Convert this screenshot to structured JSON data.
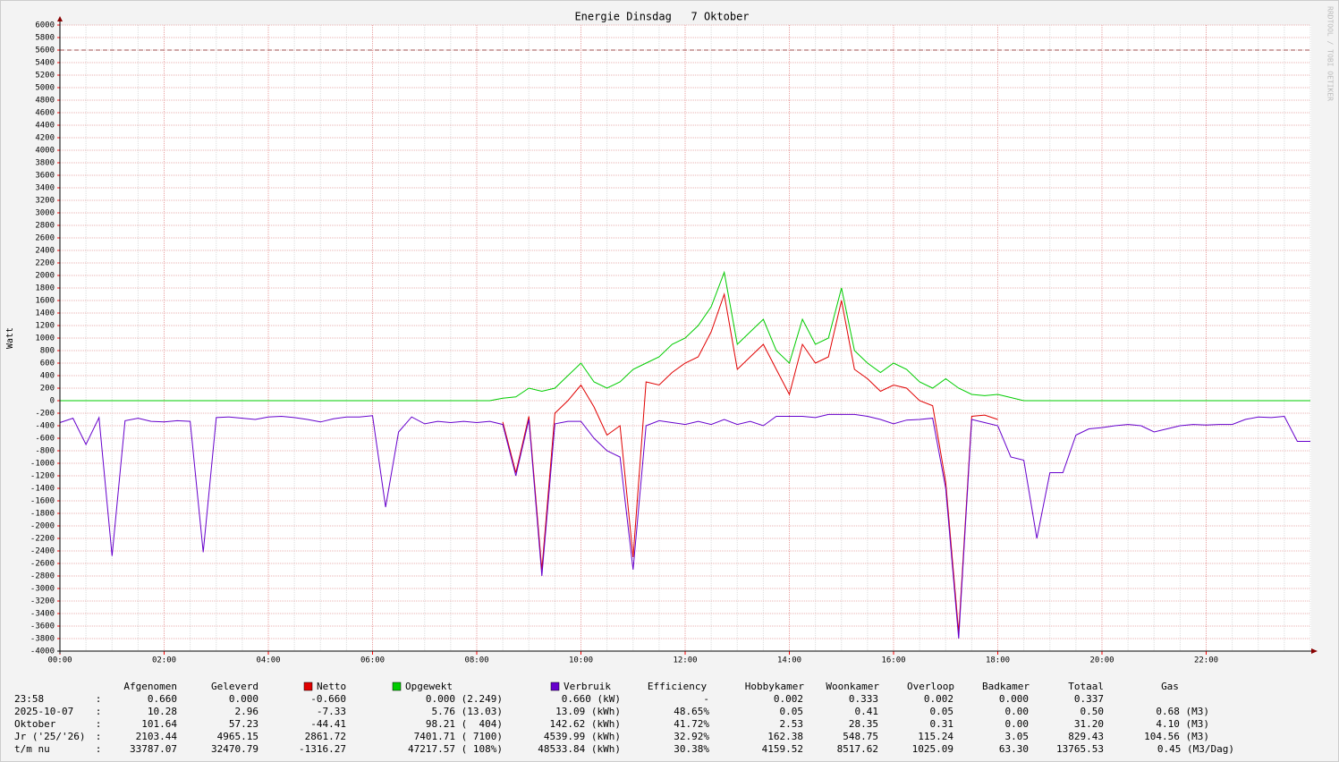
{
  "chart_data": {
    "type": "line",
    "title": "Energie Dinsdag   7 Oktober",
    "y_label": "Watt",
    "watermark": "RRDTOOL / TOBI OETIKER",
    "xlim": [
      0,
      24
    ],
    "xticks": [
      {
        "value": 0,
        "label": "00:00"
      },
      {
        "value": 2,
        "label": "02:00"
      },
      {
        "value": 4,
        "label": "04:00"
      },
      {
        "value": 6,
        "label": "06:00"
      },
      {
        "value": 8,
        "label": "08:00"
      },
      {
        "value": 10,
        "label": "10:00"
      },
      {
        "value": 12,
        "label": "12:00"
      },
      {
        "value": 14,
        "label": "14:00"
      },
      {
        "value": 16,
        "label": "16:00"
      },
      {
        "value": 18,
        "label": "18:00"
      },
      {
        "value": 20,
        "label": "20:00"
      },
      {
        "value": 22,
        "label": "22:00"
      }
    ],
    "ylim": [
      -4000,
      6000
    ],
    "yticks": [
      -4000,
      -3800,
      -3600,
      -3400,
      -3200,
      -3000,
      -2800,
      -2600,
      -2400,
      -2200,
      -2000,
      -1800,
      -1600,
      -1400,
      -1200,
      -1000,
      -800,
      -600,
      -400,
      -200,
      0,
      200,
      400,
      600,
      800,
      1000,
      1200,
      1400,
      1600,
      1800,
      2000,
      2200,
      2400,
      2600,
      2800,
      3000,
      3200,
      3400,
      3600,
      3800,
      4000,
      4200,
      4400,
      4600,
      4800,
      5000,
      5200,
      5400,
      5600,
      5800,
      6000
    ],
    "grid": true,
    "reference_line": 5600,
    "x": [
      0,
      0.25,
      0.5,
      0.75,
      1,
      1.25,
      1.5,
      1.75,
      2,
      2.25,
      2.5,
      2.75,
      3,
      3.25,
      3.5,
      3.75,
      4,
      4.25,
      4.5,
      4.75,
      5,
      5.25,
      5.5,
      5.75,
      6,
      6.25,
      6.5,
      6.75,
      7,
      7.25,
      7.5,
      7.75,
      8,
      8.25,
      8.5,
      8.75,
      9,
      9.25,
      9.5,
      9.75,
      10,
      10.25,
      10.5,
      10.75,
      11,
      11.25,
      11.5,
      11.75,
      12,
      12.25,
      12.5,
      12.75,
      13,
      13.25,
      13.5,
      13.75,
      14,
      14.25,
      14.5,
      14.75,
      15,
      15.25,
      15.5,
      15.75,
      16,
      16.25,
      16.5,
      16.75,
      17,
      17.25,
      17.5,
      17.75,
      18,
      18.25,
      18.5,
      18.75,
      19,
      19.25,
      19.5,
      19.75,
      20,
      20.25,
      20.5,
      20.75,
      21,
      21.25,
      21.5,
      21.75,
      22,
      22.25,
      22.5,
      22.75,
      23,
      23.25,
      23.5,
      23.75,
      24
    ],
    "series": [
      {
        "name": "Opgewekt",
        "color": "#00cc00",
        "values": [
          0,
          0,
          0,
          0,
          0,
          0,
          0,
          0,
          0,
          0,
          0,
          0,
          0,
          0,
          0,
          0,
          0,
          0,
          0,
          0,
          0,
          0,
          0,
          0,
          0,
          0,
          0,
          0,
          0,
          0,
          0,
          0,
          0,
          0,
          40,
          60,
          200,
          150,
          200,
          400,
          600,
          300,
          200,
          300,
          500,
          600,
          700,
          900,
          1000,
          1200,
          1500,
          2050,
          900,
          1100,
          1300,
          800,
          600,
          1300,
          900,
          1000,
          1800,
          800,
          600,
          450,
          600,
          500,
          300,
          200,
          350,
          200,
          100,
          80,
          100,
          50,
          0,
          0,
          0,
          0,
          0,
          0,
          0,
          0,
          0,
          0,
          0,
          0,
          0,
          0,
          0,
          0,
          0,
          0,
          0,
          0,
          0,
          0,
          0
        ]
      },
      {
        "name": "Netto",
        "color": "#e00000",
        "values": [
          null,
          null,
          null,
          null,
          null,
          null,
          null,
          null,
          null,
          null,
          null,
          null,
          null,
          null,
          null,
          null,
          null,
          null,
          null,
          null,
          null,
          null,
          null,
          null,
          null,
          null,
          null,
          null,
          null,
          null,
          null,
          null,
          null,
          null,
          -340,
          -1150,
          -250,
          -2700,
          -200,
          0,
          250,
          -100,
          -550,
          -400,
          -2500,
          300,
          250,
          450,
          600,
          700,
          1100,
          1700,
          500,
          700,
          900,
          500,
          100,
          900,
          600,
          700,
          1600,
          500,
          350,
          150,
          250,
          200,
          0,
          -80,
          -1300,
          -3700,
          -250,
          -230,
          -300,
          null,
          null,
          null,
          null,
          null,
          null,
          null,
          null,
          null,
          null,
          null,
          null,
          null,
          null,
          null,
          null,
          null,
          null,
          null,
          null,
          null,
          null,
          null,
          null
        ]
      },
      {
        "name": "Verbruik",
        "color": "#6600cc",
        "values": [
          -350,
          -280,
          -700,
          -270,
          -2480,
          -320,
          -280,
          -330,
          -340,
          -320,
          -330,
          -2420,
          -270,
          -260,
          -280,
          -300,
          -260,
          -250,
          -270,
          -300,
          -340,
          -290,
          -260,
          -260,
          -240,
          -1700,
          -500,
          -260,
          -370,
          -330,
          -350,
          -330,
          -350,
          -330,
          -380,
          -1200,
          -300,
          -2800,
          -370,
          -330,
          -330,
          -600,
          -800,
          -900,
          -2700,
          -400,
          -320,
          -350,
          -380,
          -330,
          -380,
          -300,
          -380,
          -330,
          -400,
          -250,
          -250,
          -250,
          -270,
          -220,
          -220,
          -220,
          -250,
          -300,
          -370,
          -310,
          -300,
          -280,
          -1400,
          -3800,
          -300,
          -350,
          -400,
          -900,
          -950,
          -2200,
          -1150,
          -1150,
          -550,
          -450,
          -430,
          -400,
          -380,
          -400,
          -500,
          -450,
          -400,
          -380,
          -390,
          -380,
          -380,
          -300,
          -260,
          -270,
          -250,
          -650,
          -650
        ]
      }
    ]
  },
  "table": {
    "columns": [
      "Afgenomen",
      "Geleverd",
      "Efficiency",
      "Hobbykamer",
      "Woonkamer",
      "Overloop",
      "Badkamer",
      "Totaal",
      "Gas"
    ],
    "rows": [
      [
        "23:58",
        ":",
        "0.660",
        "0.000",
        "-0.660",
        "0.000 (2.249)",
        "0.660 (kW)",
        "-",
        "0.002",
        "0.333",
        "0.002",
        "0.000",
        "0.337"
      ],
      [
        "2025-10-07",
        ":",
        "10.28",
        "2.96",
        "-7.33",
        "5.76 (13.03)",
        "13.09 (kWh)",
        "48.65%",
        "0.05",
        "0.41",
        "0.05",
        "0.00",
        "0.50",
        "0.68 (M3)"
      ],
      [
        "Oktober",
        ":",
        "101.64",
        "57.23",
        "-44.41",
        "98.21 (  404)",
        "142.62 (kWh)",
        "41.72%",
        "2.53",
        "28.35",
        "0.31",
        "0.00",
        "31.20",
        "4.10 (M3)"
      ],
      [
        "Jr ('25/'26)",
        ":",
        "2103.44",
        "4965.15",
        "2861.72",
        "7401.71 ( 7100)",
        "4539.99 (kWh)",
        "32.92%",
        "162.38",
        "548.75",
        "115.24",
        "3.05",
        "829.43",
        "104.56 (M3)"
      ],
      [
        "t/m nu",
        ":",
        "33787.07",
        "32470.79",
        "-1316.27",
        "47217.57 ( 108%)",
        "48533.84 (kWh)",
        "30.38%",
        "4159.52",
        "8517.62",
        "1025.09",
        "63.30",
        "13765.53",
        "0.45 (M3/Dag)"
      ]
    ]
  }
}
